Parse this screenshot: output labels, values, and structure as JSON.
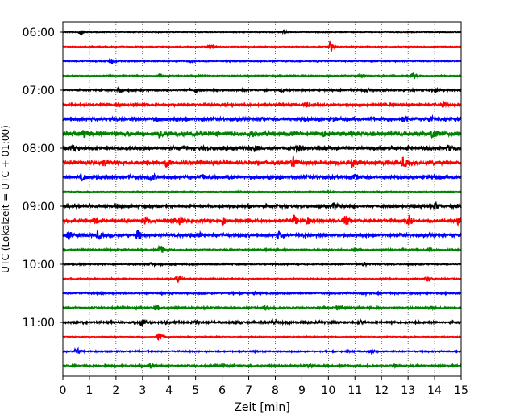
{
  "chart_data": {
    "type": "line",
    "title": "",
    "xlabel": "Zeit  [min]",
    "ylabel": "UTC (Lokalzeit = UTC + 01:00)",
    "xlim": [
      0,
      15
    ],
    "x_ticks": [
      0,
      1,
      2,
      3,
      4,
      5,
      6,
      7,
      8,
      9,
      10,
      11,
      12,
      13,
      14,
      15
    ],
    "x_tick_labels": [
      "0",
      "1",
      "2",
      "3",
      "4",
      "5",
      "6",
      "7",
      "8",
      "9",
      "10",
      "11",
      "12",
      "13",
      "14",
      "15"
    ],
    "y_tick_labels": [
      "06:00",
      "07:00",
      "08:00",
      "09:00",
      "10:00",
      "11:00"
    ],
    "grid": {
      "x": true,
      "y": false,
      "style": "dotted"
    },
    "trace_interval_min": 15,
    "trace_colors": [
      "#000000",
      "#ff0000",
      "#0000ff",
      "#008000"
    ],
    "traces": [
      {
        "start": "06:00",
        "color": "#000000",
        "noise": 0.4,
        "events": [
          [
            0.65,
            2.5
          ],
          [
            8.3,
            1.2
          ]
        ]
      },
      {
        "start": "06:15",
        "color": "#ff0000",
        "noise": 0.4,
        "events": [
          [
            5.5,
            2.0
          ],
          [
            10.05,
            6.0
          ]
        ]
      },
      {
        "start": "06:30",
        "color": "#0000ff",
        "noise": 0.5,
        "events": [
          [
            1.8,
            3.0
          ],
          [
            4.8,
            1.5
          ],
          [
            9.5,
            1.0
          ]
        ]
      },
      {
        "start": "06:45",
        "color": "#008000",
        "noise": 0.5,
        "events": [
          [
            3.65,
            2.0
          ],
          [
            11.2,
            1.5
          ],
          [
            13.15,
            4.0
          ]
        ]
      },
      {
        "start": "07:00",
        "color": "#000000",
        "noise": 0.8,
        "events": [
          [
            2.1,
            2.0
          ],
          [
            5.0,
            2.0
          ],
          [
            8.2,
            2.0
          ],
          [
            11.4,
            2.0
          ],
          [
            14.0,
            2.0
          ]
        ]
      },
      {
        "start": "07:15",
        "color": "#ff0000",
        "noise": 1.0,
        "events": [
          [
            2.0,
            1.5
          ],
          [
            6.1,
            1.5
          ],
          [
            9.15,
            3.0
          ],
          [
            12.4,
            1.5
          ],
          [
            14.3,
            2.5
          ]
        ]
      },
      {
        "start": "07:30",
        "color": "#0000ff",
        "noise": 1.5,
        "events": [
          [
            3.4,
            2.0
          ],
          [
            7.5,
            2.0
          ],
          [
            10.2,
            2.0
          ],
          [
            12.8,
            2.5
          ],
          [
            13.8,
            3.0
          ]
        ]
      },
      {
        "start": "07:45",
        "color": "#008000",
        "noise": 2.0,
        "events": [
          [
            0.8,
            4.0
          ],
          [
            3.6,
            3.0
          ],
          [
            7.1,
            3.0
          ],
          [
            9.8,
            3.0
          ],
          [
            13.9,
            4.0
          ]
        ]
      },
      {
        "start": "08:00",
        "color": "#000000",
        "noise": 1.6,
        "events": [
          [
            0.3,
            3.5
          ],
          [
            7.2,
            3.0
          ],
          [
            8.8,
            3.0
          ],
          [
            14.5,
            2.5
          ]
        ]
      },
      {
        "start": "08:15",
        "color": "#ff0000",
        "noise": 1.8,
        "events": [
          [
            1.5,
            3.0
          ],
          [
            3.9,
            4.0
          ],
          [
            8.65,
            6.0
          ],
          [
            10.9,
            5.0
          ],
          [
            12.8,
            5.0
          ]
        ]
      },
      {
        "start": "08:30",
        "color": "#0000ff",
        "noise": 1.6,
        "events": [
          [
            0.7,
            3.0
          ],
          [
            3.3,
            3.5
          ],
          [
            5.2,
            2.5
          ],
          [
            11.0,
            3.5
          ]
        ]
      },
      {
        "start": "08:45",
        "color": "#008000",
        "noise": 0.4,
        "events": [
          [
            6.6,
            1.0
          ],
          [
            10.0,
            1.0
          ]
        ]
      },
      {
        "start": "09:00",
        "color": "#000000",
        "noise": 1.3,
        "events": [
          [
            7.0,
            2.0
          ],
          [
            10.2,
            3.5
          ],
          [
            14.0,
            3.5
          ],
          [
            14.8,
            2.5
          ]
        ]
      },
      {
        "start": "09:15",
        "color": "#ff0000",
        "noise": 1.3,
        "events": [
          [
            1.2,
            5.0
          ],
          [
            3.1,
            4.0
          ],
          [
            4.4,
            5.5
          ],
          [
            6.0,
            4.0
          ],
          [
            8.7,
            5.0
          ],
          [
            9.2,
            4.0
          ],
          [
            10.6,
            8.0
          ],
          [
            13.0,
            5.0
          ],
          [
            14.9,
            5.0
          ]
        ]
      },
      {
        "start": "09:30",
        "color": "#0000ff",
        "noise": 1.4,
        "events": [
          [
            0.2,
            4.0
          ],
          [
            1.3,
            4.0
          ],
          [
            2.8,
            6.0
          ],
          [
            5.1,
            2.5
          ],
          [
            8.1,
            4.0
          ]
        ]
      },
      {
        "start": "09:45",
        "color": "#008000",
        "noise": 0.7,
        "events": [
          [
            3.65,
            5.0
          ],
          [
            11.0,
            2.5
          ],
          [
            13.8,
            2.5
          ]
        ]
      },
      {
        "start": "10:00",
        "color": "#000000",
        "noise": 0.6,
        "events": [
          [
            3.3,
            1.5
          ],
          [
            11.3,
            2.0
          ]
        ]
      },
      {
        "start": "10:15",
        "color": "#ff0000",
        "noise": 0.5,
        "events": [
          [
            4.3,
            4.0
          ],
          [
            13.7,
            3.0
          ]
        ]
      },
      {
        "start": "10:30",
        "color": "#0000ff",
        "noise": 0.7,
        "events": [
          [
            1.4,
            1.5
          ],
          [
            7.2,
            1.5
          ],
          [
            11.3,
            1.5
          ]
        ]
      },
      {
        "start": "10:45",
        "color": "#008000",
        "noise": 0.8,
        "events": [
          [
            3.5,
            3.0
          ],
          [
            7.6,
            2.0
          ],
          [
            10.3,
            2.5
          ],
          [
            13.8,
            3.0
          ]
        ]
      },
      {
        "start": "11:00",
        "color": "#000000",
        "noise": 1.0,
        "events": [
          [
            2.95,
            3.5
          ],
          [
            5.0,
            1.5
          ],
          [
            7.9,
            1.5
          ],
          [
            11.2,
            1.5
          ]
        ]
      },
      {
        "start": "11:15",
        "color": "#ff0000",
        "noise": 0.4,
        "events": [
          [
            3.6,
            5.5
          ]
        ]
      },
      {
        "start": "11:30",
        "color": "#0000ff",
        "noise": 0.6,
        "events": [
          [
            0.5,
            3.0
          ],
          [
            10.7,
            1.5
          ],
          [
            11.6,
            1.5
          ]
        ]
      },
      {
        "start": "11:45",
        "color": "#008000",
        "noise": 0.8,
        "events": [
          [
            3.3,
            3.0
          ],
          [
            6.0,
            1.5
          ],
          [
            9.2,
            1.5
          ],
          [
            12.5,
            1.5
          ]
        ]
      }
    ]
  }
}
